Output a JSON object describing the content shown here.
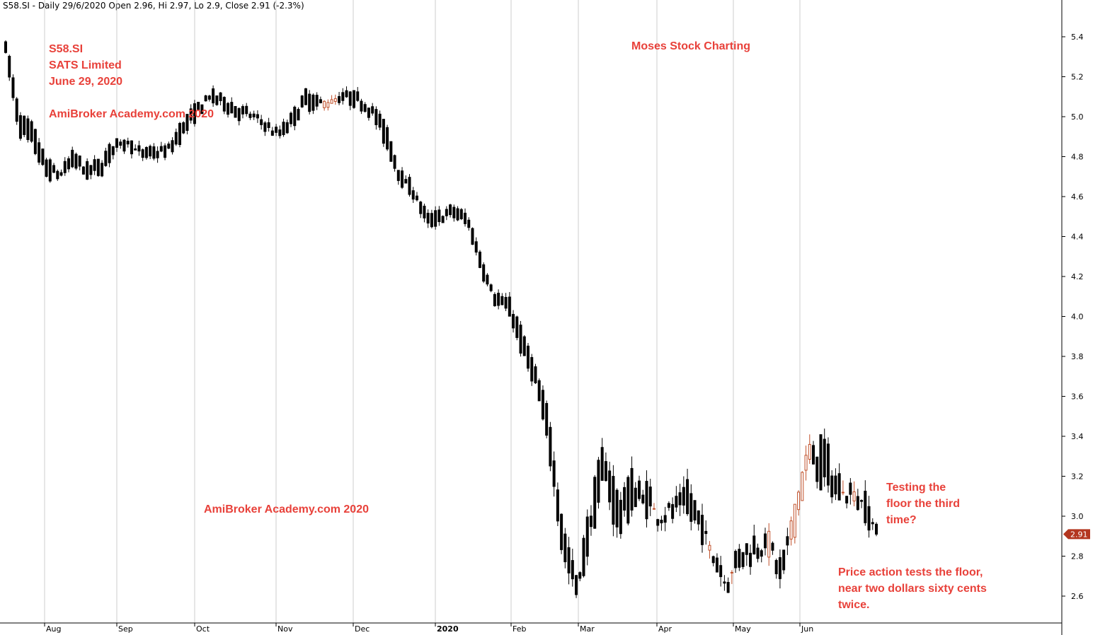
{
  "header": {
    "text": "S58.SI - Daily 29/6/2020 Open 2.96, Hi 2.97, Lo 2.9, Close 2.91 (-2.3%)"
  },
  "annotations": {
    "ticker": "S58.SI",
    "company": "SATS Limited",
    "date": "June 29, 2020",
    "watermark_top": "AmiBroker Academy.com 2020",
    "brand": "Moses Stock Charting",
    "watermark_mid": "AmiBroker Academy.com  2020",
    "testing_line1": "Testing the",
    "testing_line2": "floor the third",
    "testing_line3": "time?",
    "price_line1": "Price action tests the floor,",
    "price_line2": "near two dollars sixty cents",
    "price_line3": "twice."
  },
  "colors": {
    "up": "#c0502a",
    "down": "#000000",
    "annotation": "#e8413a",
    "last_price_bg": "#b3361f",
    "grid": "#cccccc"
  },
  "chart_data": {
    "type": "candlestick",
    "ylim": [
      2.48,
      5.48
    ],
    "y_ticks": [
      "2.6",
      "2.8",
      "3.0",
      "3.2",
      "3.4",
      "3.6",
      "3.8",
      "4.0",
      "4.2",
      "4.4",
      "4.6",
      "4.8",
      "5.0",
      "5.2",
      "5.4"
    ],
    "x_labels": [
      {
        "label": "Aug",
        "bold": false
      },
      {
        "label": "Sep",
        "bold": false
      },
      {
        "label": "Oct",
        "bold": false
      },
      {
        "label": "Nov",
        "bold": false
      },
      {
        "label": "Dec",
        "bold": false
      },
      {
        "label": "2020",
        "bold": true
      },
      {
        "label": "Feb",
        "bold": false
      },
      {
        "label": "Mar",
        "bold": false
      },
      {
        "label": "Apr",
        "bold": false
      },
      {
        "label": "May",
        "bold": false
      },
      {
        "label": "Jun",
        "bold": false
      }
    ],
    "last_price": "2.91",
    "anchors": [
      [
        5.4,
        5.3
      ],
      [
        5.0,
        4.92
      ],
      [
        4.95,
        4.85
      ],
      [
        4.78,
        4.7
      ],
      [
        4.72,
        4.7
      ],
      [
        4.82,
        4.76
      ],
      [
        4.75,
        4.7
      ],
      [
        4.78,
        4.72
      ],
      [
        4.88,
        4.82
      ],
      [
        4.9,
        4.85
      ],
      [
        4.82,
        4.8
      ],
      [
        4.84,
        4.8
      ],
      [
        4.85,
        4.82
      ],
      [
        4.98,
        4.9
      ],
      [
        5.05,
        5.0
      ],
      [
        5.12,
        5.08
      ],
      [
        5.1,
        5.05
      ],
      [
        5.05,
        5.0
      ],
      [
        5.02,
        5.0
      ],
      [
        4.98,
        4.95
      ],
      [
        4.92,
        4.9
      ],
      [
        5.0,
        4.95
      ],
      [
        5.12,
        5.05
      ],
      [
        5.08,
        5.05
      ],
      [
        5.05,
        5.1
      ],
      [
        5.12,
        5.08
      ],
      [
        5.1,
        5.06
      ],
      [
        5.05,
        5.0
      ],
      [
        4.95,
        4.85
      ],
      [
        4.72,
        4.68
      ],
      [
        4.65,
        4.6
      ],
      [
        4.5,
        4.45
      ],
      [
        4.52,
        4.48
      ],
      [
        4.55,
        4.5
      ],
      [
        4.5,
        4.45
      ],
      [
        4.3,
        4.22
      ],
      [
        4.12,
        4.06
      ],
      [
        4.08,
        4.02
      ],
      [
        3.92,
        3.8
      ],
      [
        3.72,
        3.65
      ],
      [
        3.5,
        3.3
      ],
      [
        2.95,
        2.78
      ],
      [
        2.7,
        2.58
      ],
      [
        3.05,
        2.9
      ],
      [
        3.35,
        3.2
      ],
      [
        3.1,
        2.9
      ],
      [
        3.2,
        3.05
      ],
      [
        3.15,
        3.05
      ],
      [
        3.02,
        3.0
      ],
      [
        3.05,
        3.0
      ],
      [
        3.2,
        3.0
      ],
      [
        2.98,
        2.95
      ],
      [
        2.85,
        2.78
      ],
      [
        2.7,
        2.65
      ],
      [
        2.82,
        2.78
      ],
      [
        2.88,
        2.8
      ],
      [
        2.85,
        2.9
      ],
      [
        2.75,
        2.65
      ],
      [
        2.95,
        3.05
      ],
      [
        3.25,
        3.35
      ],
      [
        3.4,
        3.15
      ],
      [
        3.2,
        3.1
      ],
      [
        3.15,
        3.1
      ],
      [
        3.1,
        3.05
      ],
      [
        2.96,
        2.91
      ]
    ]
  }
}
